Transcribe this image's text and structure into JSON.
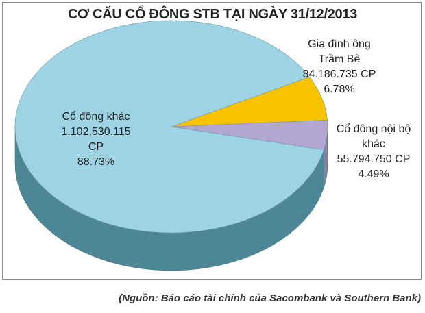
{
  "chart_data": {
    "type": "pie",
    "title": "CƠ CẤU CỔ ĐÔNG STB TẠI NGÀY 31/12/2013",
    "categories": [
      "Cổ đông khác",
      "Gia đình ông Trầm Bê",
      "Cổ đông nội bộ khác"
    ],
    "values": [
      88.73,
      6.78,
      4.49
    ],
    "value_labels": [
      "88.73%",
      "6.78%",
      "4.49%"
    ],
    "shares": [
      1102530115,
      84186735,
      55794750
    ],
    "share_labels": [
      "1.102.530.115 CP",
      "84.186.735 CP",
      "55.794.750 CP"
    ],
    "colors": [
      "#9dd3e3",
      "#f7c200",
      "#b3a6d1"
    ],
    "side_colors": [
      "#4d8796",
      "#b58e00",
      "#8a7da8"
    ],
    "source": "(Nguồn: Báo cáo tài chính của Sacombank và Southern Bank)"
  }
}
